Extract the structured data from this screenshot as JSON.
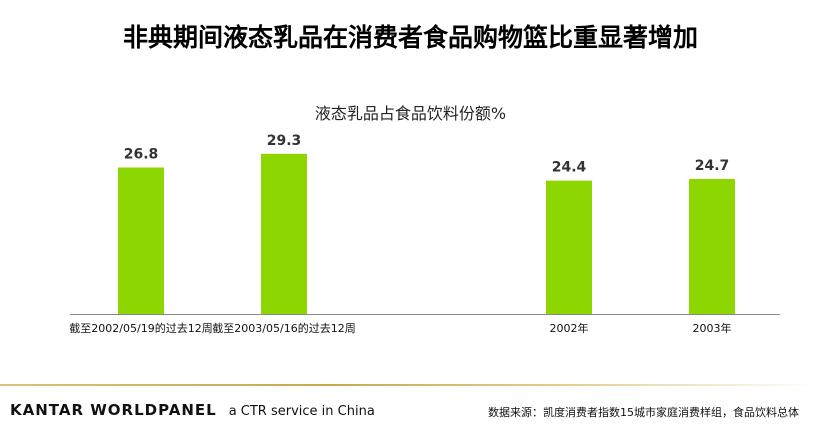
{
  "page": {
    "title": "非典期间液态乳品在消费者食品购物篮比重显著增加"
  },
  "footer": {
    "brand_name": "KANTAR WORLDPANEL",
    "brand_tagline": "a CTR service in China",
    "source": "数据来源：凯度消费者指数15城市家庭消费样组，食品饮料总体"
  },
  "colors": {
    "bar": "#8ed600",
    "axis": "#888888"
  },
  "chart_data": {
    "type": "bar",
    "title": "液态乳品占食品饮料份额%",
    "xlabel": "",
    "ylabel": "",
    "ylim": [
      0,
      30
    ],
    "grid": false,
    "categories": [
      "截至2002/05/19的过去12周",
      "截至2003/05/16的过去12周",
      "2002年",
      "2003年"
    ],
    "values": [
      26.8,
      29.3,
      24.4,
      24.7
    ],
    "data_labels": [
      "26.8",
      "29.3",
      "24.4",
      "24.7"
    ]
  }
}
